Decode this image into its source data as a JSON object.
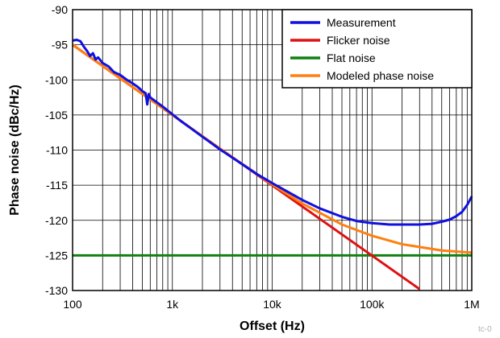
{
  "chart_data": {
    "type": "line",
    "xlabel": "Offset (Hz)",
    "ylabel": "Phase noise (dBc/Hz)",
    "xscale": "log",
    "xlim": [
      100,
      1000000
    ],
    "ylim": [
      -130,
      -90
    ],
    "grid": true,
    "legend_position": "top-right",
    "x_ticks": [
      {
        "value": 100,
        "label": "100"
      },
      {
        "value": 1000,
        "label": "1k"
      },
      {
        "value": 10000,
        "label": "10k"
      },
      {
        "value": 100000,
        "label": "100k"
      },
      {
        "value": 1000000,
        "label": "1M"
      }
    ],
    "y_ticks": [
      {
        "value": -90,
        "label": "-90"
      },
      {
        "value": -95,
        "label": "-95"
      },
      {
        "value": -100,
        "label": "-100"
      },
      {
        "value": -105,
        "label": "-105"
      },
      {
        "value": -110,
        "label": "-110"
      },
      {
        "value": -115,
        "label": "-115"
      },
      {
        "value": -120,
        "label": "-120"
      },
      {
        "value": -125,
        "label": "-125"
      },
      {
        "value": -130,
        "label": "-130"
      }
    ],
    "series": [
      {
        "name": "Measurement",
        "color": "#1010e0",
        "points": [
          [
            100,
            -94.4
          ],
          [
            110,
            -94.3
          ],
          [
            120,
            -94.5
          ],
          [
            130,
            -95.3
          ],
          [
            140,
            -95.9
          ],
          [
            150,
            -96.6
          ],
          [
            160,
            -96.2
          ],
          [
            170,
            -97.1
          ],
          [
            180,
            -96.8
          ],
          [
            200,
            -97.6
          ],
          [
            230,
            -98.1
          ],
          [
            260,
            -98.9
          ],
          [
            300,
            -99.3
          ],
          [
            350,
            -100.0
          ],
          [
            400,
            -100.5
          ],
          [
            450,
            -101.0
          ],
          [
            500,
            -101.6
          ],
          [
            540,
            -101.9
          ],
          [
            560,
            -103.5
          ],
          [
            580,
            -102.0
          ],
          [
            600,
            -102.5
          ],
          [
            700,
            -103.2
          ],
          [
            800,
            -103.8
          ],
          [
            1000,
            -104.9
          ],
          [
            1200,
            -105.8
          ],
          [
            1500,
            -106.8
          ],
          [
            2000,
            -108.1
          ],
          [
            3000,
            -109.9
          ],
          [
            5000,
            -112.0
          ],
          [
            7000,
            -113.4
          ],
          [
            10000,
            -114.7
          ],
          [
            15000,
            -116.1
          ],
          [
            20000,
            -117.1
          ],
          [
            30000,
            -118.3
          ],
          [
            50000,
            -119.5
          ],
          [
            70000,
            -120.1
          ],
          [
            100000,
            -120.4
          ],
          [
            150000,
            -120.6
          ],
          [
            200000,
            -120.6
          ],
          [
            300000,
            -120.6
          ],
          [
            400000,
            -120.5
          ],
          [
            500000,
            -120.2
          ],
          [
            600000,
            -119.9
          ],
          [
            700000,
            -119.4
          ],
          [
            800000,
            -118.8
          ],
          [
            900000,
            -117.8
          ],
          [
            1000000,
            -116.6
          ]
        ]
      },
      {
        "name": "Flicker noise",
        "color": "#e01010",
        "points": [
          [
            100,
            -95.0
          ],
          [
            300000,
            -129.8
          ]
        ]
      },
      {
        "name": "Flat noise",
        "color": "#108010",
        "points": [
          [
            100,
            -125.0
          ],
          [
            1000000,
            -125.0
          ]
        ]
      },
      {
        "name": "Modeled phase noise",
        "color": "#ff7f10",
        "points": [
          [
            100,
            -95.0
          ],
          [
            300,
            -99.8
          ],
          [
            1000,
            -105.0
          ],
          [
            3000,
            -109.8
          ],
          [
            10000,
            -114.9
          ],
          [
            20000,
            -117.6
          ],
          [
            50000,
            -120.6
          ],
          [
            100000,
            -122.2
          ],
          [
            200000,
            -123.4
          ],
          [
            500000,
            -124.3
          ],
          [
            1000000,
            -124.6
          ]
        ]
      }
    ]
  },
  "watermark": "tc-0"
}
